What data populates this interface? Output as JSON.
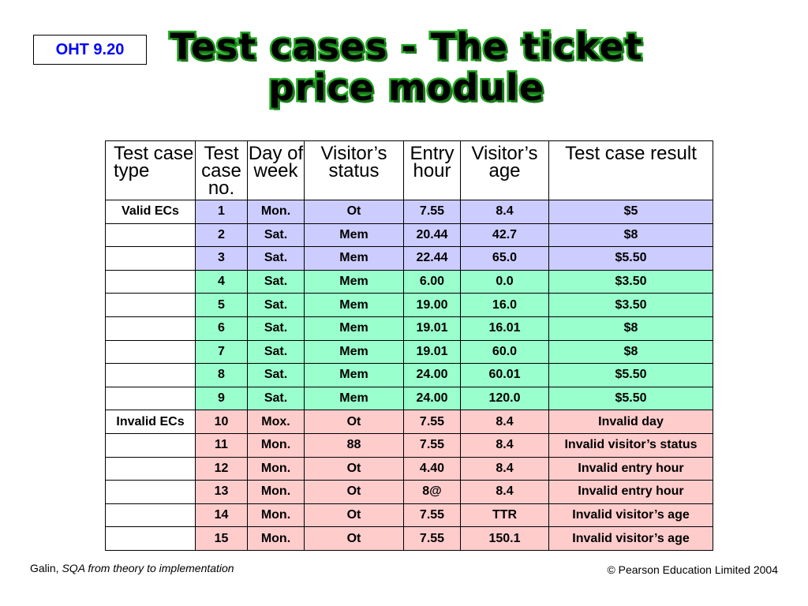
{
  "badge": "OHT 9.20",
  "title_line1": "Test cases - The ticket",
  "title_line2": "price module",
  "table": {
    "headers": [
      "Test case type",
      "Test case no.",
      "Day of week",
      "Visitor’s status",
      "Entry hour",
      "Visitor’s age",
      "Test case result"
    ],
    "rows": [
      {
        "type": "Valid ECs",
        "no": "1",
        "day": "Mon.",
        "status": "Ot",
        "hour": "7.55",
        "age": "8.4",
        "result": "$5",
        "color": "blue"
      },
      {
        "type": "",
        "no": "2",
        "day": "Sat.",
        "status": "Mem",
        "hour": "20.44",
        "age": "42.7",
        "result": "$8",
        "color": "blue"
      },
      {
        "type": "",
        "no": "3",
        "day": "Sat.",
        "status": "Mem",
        "hour": "22.44",
        "age": "65.0",
        "result": "$5.50",
        "color": "blue"
      },
      {
        "type": "",
        "no": "4",
        "day": "Sat.",
        "status": "Mem",
        "hour": "6.00",
        "age": "0.0",
        "result": "$3.50",
        "color": "green"
      },
      {
        "type": "",
        "no": "5",
        "day": "Sat.",
        "status": "Mem",
        "hour": "19.00",
        "age": "16.0",
        "result": "$3.50",
        "color": "green"
      },
      {
        "type": "",
        "no": "6",
        "day": "Sat.",
        "status": "Mem",
        "hour": "19.01",
        "age": "16.01",
        "result": "$8",
        "color": "green"
      },
      {
        "type": "",
        "no": "7",
        "day": "Sat.",
        "status": "Mem",
        "hour": "19.01",
        "age": "60.0",
        "result": "$8",
        "color": "green"
      },
      {
        "type": "",
        "no": "8",
        "day": "Sat.",
        "status": "Mem",
        "hour": "24.00",
        "age": "60.01",
        "result": "$5.50",
        "color": "green"
      },
      {
        "type": "",
        "no": "9",
        "day": "Sat.",
        "status": "Mem",
        "hour": "24.00",
        "age": "120.0",
        "result": "$5.50",
        "color": "green"
      },
      {
        "type": "Invalid ECs",
        "no": "10",
        "day": "Mox.",
        "status": "Ot",
        "hour": "7.55",
        "age": "8.4",
        "result": "Invalid day",
        "color": "red"
      },
      {
        "type": "",
        "no": "11",
        "day": "Mon.",
        "status": "88",
        "hour": "7.55",
        "age": "8.4",
        "result": "Invalid visitor’s status",
        "color": "red"
      },
      {
        "type": "",
        "no": "12",
        "day": "Mon.",
        "status": "Ot",
        "hour": "4.40",
        "age": "8.4",
        "result": "Invalid entry hour",
        "color": "red"
      },
      {
        "type": "",
        "no": "13",
        "day": "Mon.",
        "status": "Ot",
        "hour": "8@",
        "age": "8.4",
        "result": "Invalid entry hour",
        "color": "red"
      },
      {
        "type": "",
        "no": "14",
        "day": "Mon.",
        "status": "Ot",
        "hour": "7.55",
        "age": "TTR",
        "result": "Invalid visitor’s age",
        "color": "red"
      },
      {
        "type": "",
        "no": "15",
        "day": "Mon.",
        "status": "Ot",
        "hour": "7.55",
        "age": "150.1",
        "result": "Invalid visitor’s age",
        "color": "red"
      }
    ]
  },
  "footer": {
    "author": "Galin, ",
    "book": "SQA from theory to implementation",
    "copyright": "© Pearson Education Limited 2004"
  },
  "colors": {
    "title_outline": "#22aa22",
    "badge_text": "#0000ff",
    "blue_row": "#ccccff",
    "green_row": "#99ffcc",
    "red_row": "#ffcccc"
  }
}
